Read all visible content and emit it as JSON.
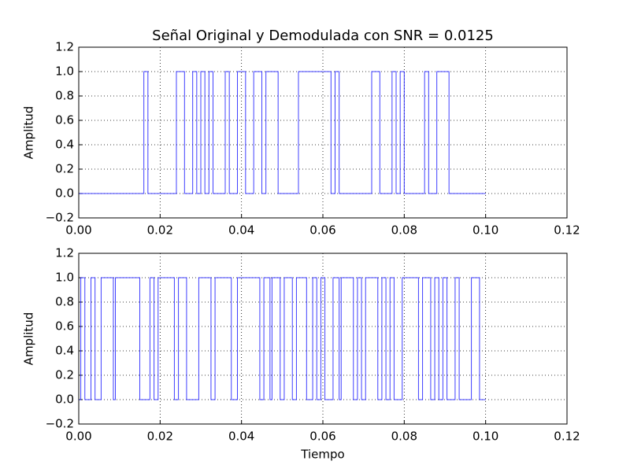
{
  "chart_data": [
    {
      "type": "line",
      "title": "Señal Original y Demodulada con SNR = 0.0125",
      "ylabel": "Amplitud",
      "x": [
        0,
        0.016,
        0.016,
        0.017,
        0.017,
        0.024,
        0.024,
        0.026,
        0.026,
        0.028,
        0.028,
        0.029,
        0.029,
        0.03,
        0.03,
        0.031,
        0.031,
        0.032,
        0.032,
        0.033,
        0.033,
        0.036,
        0.036,
        0.037,
        0.037,
        0.039,
        0.039,
        0.041,
        0.041,
        0.043,
        0.043,
        0.045,
        0.045,
        0.046,
        0.046,
        0.049,
        0.049,
        0.054,
        0.054,
        0.062,
        0.062,
        0.063,
        0.063,
        0.064,
        0.064,
        0.072,
        0.072,
        0.074,
        0.074,
        0.077,
        0.077,
        0.078,
        0.078,
        0.079,
        0.079,
        0.08,
        0.08,
        0.085,
        0.085,
        0.086,
        0.086,
        0.088,
        0.088,
        0.091,
        0.091,
        0.1
      ],
      "values": [
        0,
        0,
        1,
        1,
        0,
        0,
        1,
        1,
        0,
        0,
        1,
        1,
        0,
        0,
        1,
        1,
        0,
        0,
        1,
        1,
        0,
        0,
        1,
        1,
        0,
        0,
        1,
        1,
        0,
        0,
        1,
        1,
        0,
        0,
        1,
        1,
        0,
        0,
        1,
        1,
        0,
        0,
        1,
        1,
        0,
        0,
        1,
        1,
        0,
        0,
        1,
        1,
        0,
        0,
        1,
        1,
        0,
        0,
        1,
        1,
        0,
        0,
        1,
        1,
        0,
        0
      ],
      "color": "#0000ff",
      "xlim": [
        0,
        0.12
      ],
      "ylim": [
        -0.2,
        1.2
      ],
      "xticks": [
        {
          "value": 0,
          "label": "0.00"
        },
        {
          "value": 0.02,
          "label": "0.02"
        },
        {
          "value": 0.04,
          "label": "0.04"
        },
        {
          "value": 0.06,
          "label": "0.06"
        },
        {
          "value": 0.08,
          "label": "0.08"
        },
        {
          "value": 0.1,
          "label": "0.10"
        },
        {
          "value": 0.12,
          "label": "0.12"
        }
      ],
      "yticks": [
        {
          "value": -0.2,
          "label": "−0.2"
        },
        {
          "value": 0,
          "label": "0.0"
        },
        0.2,
        0.4,
        0.6,
        0.8,
        {
          "value": 1,
          "label": "1.0"
        },
        1.2
      ],
      "grid": true
    },
    {
      "type": "line",
      "ylabel": "Amplitud",
      "xlabel": "Tiempo",
      "x": [
        0,
        0.0005,
        0.0005,
        0.0015,
        0.0015,
        0.003,
        0.003,
        0.004,
        0.004,
        0.0055,
        0.0055,
        0.0085,
        0.0085,
        0.009,
        0.009,
        0.015,
        0.015,
        0.0175,
        0.0175,
        0.0185,
        0.0185,
        0.0195,
        0.0195,
        0.0235,
        0.0235,
        0.0245,
        0.0245,
        0.0265,
        0.0265,
        0.0295,
        0.0295,
        0.0325,
        0.0325,
        0.0335,
        0.0335,
        0.0375,
        0.0375,
        0.039,
        0.039,
        0.0445,
        0.0445,
        0.0455,
        0.0455,
        0.047,
        0.047,
        0.0475,
        0.0475,
        0.0495,
        0.0495,
        0.0505,
        0.0505,
        0.0525,
        0.0525,
        0.0535,
        0.0535,
        0.056,
        0.056,
        0.0575,
        0.0575,
        0.0585,
        0.0585,
        0.0595,
        0.0595,
        0.0605,
        0.0605,
        0.0625,
        0.0625,
        0.064,
        0.064,
        0.0645,
        0.0645,
        0.0675,
        0.0675,
        0.0685,
        0.0685,
        0.0695,
        0.0695,
        0.0705,
        0.0705,
        0.0735,
        0.0735,
        0.0745,
        0.0745,
        0.0755,
        0.0755,
        0.0765,
        0.0765,
        0.0775,
        0.0775,
        0.0795,
        0.0795,
        0.0835,
        0.0835,
        0.0845,
        0.0845,
        0.0865,
        0.0865,
        0.0875,
        0.0875,
        0.0885,
        0.0885,
        0.0895,
        0.0895,
        0.0905,
        0.0905,
        0.0925,
        0.0925,
        0.0935,
        0.0935,
        0.0965,
        0.0965,
        0.0985,
        0.0985,
        0.1
      ],
      "values": [
        0,
        0,
        1,
        1,
        0,
        0,
        1,
        1,
        0,
        0,
        1,
        1,
        0,
        0,
        1,
        1,
        0,
        0,
        1,
        1,
        0,
        0,
        1,
        1,
        0,
        0,
        1,
        1,
        0,
        0,
        1,
        1,
        0,
        0,
        1,
        1,
        0,
        0,
        1,
        1,
        0,
        0,
        1,
        1,
        0,
        0,
        1,
        1,
        0,
        0,
        1,
        1,
        0,
        0,
        1,
        1,
        0,
        0,
        1,
        1,
        0,
        0,
        1,
        1,
        0,
        0,
        1,
        1,
        0,
        0,
        1,
        1,
        0,
        0,
        1,
        1,
        0,
        0,
        1,
        1,
        0,
        0,
        1,
        1,
        0,
        0,
        1,
        1,
        0,
        0,
        1,
        1,
        0,
        0,
        1,
        1,
        0,
        0,
        1,
        1,
        0,
        0,
        1,
        1,
        0,
        0,
        1,
        1,
        0,
        0,
        1,
        1,
        0,
        0
      ],
      "color": "#0000ff",
      "xlim": [
        0,
        0.12
      ],
      "ylim": [
        -0.2,
        1.2
      ],
      "xticks": [
        {
          "value": 0,
          "label": "0.00"
        },
        {
          "value": 0.02,
          "label": "0.02"
        },
        {
          "value": 0.04,
          "label": "0.04"
        },
        {
          "value": 0.06,
          "label": "0.06"
        },
        {
          "value": 0.08,
          "label": "0.08"
        },
        {
          "value": 0.1,
          "label": "0.10"
        },
        {
          "value": 0.12,
          "label": "0.12"
        }
      ],
      "yticks": [
        {
          "value": -0.2,
          "label": "−0.2"
        },
        {
          "value": 0,
          "label": "0.0"
        },
        0.2,
        0.4,
        0.6,
        0.8,
        {
          "value": 1,
          "label": "1.0"
        },
        1.2
      ],
      "grid": true
    }
  ]
}
